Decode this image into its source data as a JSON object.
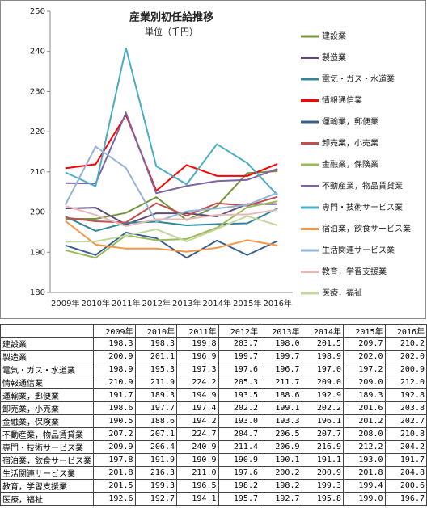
{
  "chart_data": {
    "type": "line",
    "title": "産業別初任給推移",
    "subtitle": "単位（千円）",
    "categories": [
      "2009年",
      "2010年",
      "2011年",
      "2012年",
      "2013年",
      "2014年",
      "2015年",
      "2016年"
    ],
    "ylim": [
      180,
      250
    ],
    "yticks": [
      180,
      190,
      200,
      210,
      220,
      230,
      240,
      250
    ],
    "grid": false,
    "legend": "right",
    "series": [
      {
        "name": "建設業",
        "color": "#77933c",
        "values": [
          198.3,
          198.3,
          199.8,
          203.7,
          198.0,
          201.5,
          209.7,
          210.2
        ],
        "value_labels": [
          "198.3",
          "198.3",
          "199.8",
          "203.7",
          "198.0",
          "201.5",
          "209.7",
          "210.2"
        ]
      },
      {
        "name": "製造業",
        "color": "#604a7b",
        "values": [
          200.9,
          201.1,
          196.9,
          199.7,
          199.7,
          198.9,
          202.0,
          202.0
        ],
        "value_labels": [
          "200.9",
          "201.1",
          "196.9",
          "199.7",
          "199.7",
          "198.9",
          "202.0",
          "202.0"
        ]
      },
      {
        "name": "電気・ガス・水道業",
        "color": "#31859c",
        "values": [
          198.9,
          195.3,
          197.3,
          197.6,
          196.7,
          197.0,
          197.2,
          200.9
        ],
        "value_labels": [
          "198.9",
          "195.3",
          "197.3",
          "197.6",
          "196.7",
          "197.0",
          "197.2",
          "200.9"
        ]
      },
      {
        "name": "情報通信業",
        "color": "#ff0000",
        "values": [
          210.9,
          211.9,
          224.2,
          205.3,
          211.7,
          209.0,
          209.0,
          212.0
        ],
        "value_labels": [
          "210.9",
          "211.9",
          "224.2",
          "205.3",
          "211.7",
          "209.0",
          "209.0",
          "212.0"
        ]
      },
      {
        "name": "運輸業，郵便業",
        "color": "#376092",
        "values": [
          191.7,
          189.3,
          194.9,
          193.5,
          188.6,
          192.9,
          189.3,
          192.8
        ],
        "value_labels": [
          "191.7",
          "189.3",
          "194.9",
          "193.5",
          "188.6",
          "192.9",
          "189.3",
          "192.8"
        ]
      },
      {
        "name": "卸売業，小売業",
        "color": "#c0504d",
        "values": [
          198.6,
          197.7,
          197.4,
          202.2,
          199.1,
          202.2,
          201.6,
          203.8
        ],
        "value_labels": [
          "198.6",
          "197.7",
          "197.4",
          "202.2",
          "199.1",
          "202.2",
          "201.6",
          "203.8"
        ]
      },
      {
        "name": "金融業，保険業",
        "color": "#9bbb59",
        "values": [
          190.5,
          188.6,
          194.2,
          193.0,
          193.3,
          196.1,
          201.2,
          202.7
        ],
        "value_labels": [
          "190.5",
          "188.6",
          "194.2",
          "193.0",
          "193.3",
          "196.1",
          "201.2",
          "202.7"
        ]
      },
      {
        "name": "不動産業，物品賃貸業",
        "color": "#8064a2",
        "values": [
          207.2,
          207.1,
          224.7,
          204.7,
          206.5,
          207.7,
          208.0,
          210.8
        ],
        "value_labels": [
          "207.2",
          "207.1",
          "224.7",
          "204.7",
          "206.5",
          "207.7",
          "208.0",
          "210.8"
        ]
      },
      {
        "name": "専門・技術サービス業",
        "color": "#4bacc6",
        "values": [
          209.9,
          206.4,
          240.9,
          211.4,
          206.9,
          216.9,
          212.2,
          204.2
        ],
        "value_labels": [
          "209.9",
          "206.4",
          "240.9",
          "211.4",
          "206.9",
          "216.9",
          "212.2",
          "204.2"
        ]
      },
      {
        "name": "宿泊業，飲食サービス業",
        "color": "#f79646",
        "values": [
          197.8,
          191.9,
          190.9,
          190.9,
          190.1,
          191.1,
          193.0,
          191.7
        ],
        "value_labels": [
          "197.8",
          "191.9",
          "190.9",
          "190.9",
          "190.1",
          "191.1",
          "193.0",
          "191.7"
        ]
      },
      {
        "name": "生活関連サービス業",
        "color": "#95b3d7",
        "values": [
          201.8,
          216.3,
          211.0,
          197.6,
          200.2,
          200.9,
          201.8,
          204.8
        ],
        "value_labels": [
          "201.8",
          "216.3",
          "211.0",
          "197.6",
          "200.2",
          "200.9",
          "201.8",
          "204.8"
        ]
      },
      {
        "name": "教育，学習支援業",
        "color": "#e6b9b8",
        "values": [
          201.5,
          199.3,
          196.5,
          198.2,
          198.2,
          199.3,
          199.4,
          200.6
        ],
        "value_labels": [
          "201.5",
          "199.3",
          "196.5",
          "198.2",
          "198.2",
          "199.3",
          "199.4",
          "200.6"
        ]
      },
      {
        "name": "医療，福祉",
        "color": "#c4d79b",
        "values": [
          192.6,
          192.7,
          194.1,
          195.7,
          192.7,
          195.8,
          199.0,
          196.7
        ],
        "value_labels": [
          "192.6",
          "192.7",
          "194.1",
          "195.7",
          "192.7",
          "195.8",
          "199.0",
          "196.7"
        ]
      }
    ]
  }
}
